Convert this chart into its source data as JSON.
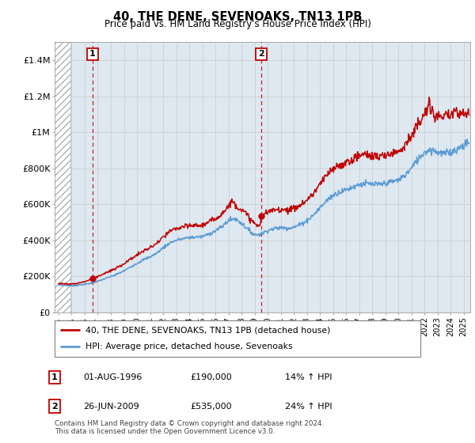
{
  "title": "40, THE DENE, SEVENOAKS, TN13 1PB",
  "subtitle": "Price paid vs. HM Land Registry's House Price Index (HPI)",
  "xlim_start": 1993.7,
  "xlim_end": 2025.5,
  "ylim": [
    0,
    1500000
  ],
  "yticks": [
    0,
    200000,
    400000,
    600000,
    800000,
    1000000,
    1200000,
    1400000
  ],
  "ytick_labels": [
    "£0",
    "£200K",
    "£400K",
    "£600K",
    "£800K",
    "£1M",
    "£1.2M",
    "£1.4M"
  ],
  "sale1_x": 1996.6,
  "sale1_y": 190000,
  "sale1_label": "1",
  "sale2_x": 2009.5,
  "sale2_y": 535000,
  "sale2_label": "2",
  "hpi_color": "#5b9bd5",
  "price_color": "#c00000",
  "grid_color": "#d0d0d0",
  "bg_color": "#dde8f0",
  "hatch_end": 1994.92,
  "legend_line1": "40, THE DENE, SEVENOAKS, TN13 1PB (detached house)",
  "legend_line2": "HPI: Average price, detached house, Sevenoaks",
  "annotation1_date": "01-AUG-1996",
  "annotation1_price": "£190,000",
  "annotation1_hpi": "14% ↑ HPI",
  "annotation2_date": "26-JUN-2009",
  "annotation2_price": "£535,000",
  "annotation2_hpi": "24% ↑ HPI",
  "footer": "Contains HM Land Registry data © Crown copyright and database right 2024.\nThis data is licensed under the Open Government Licence v3.0.",
  "xtick_years": [
    1994,
    1995,
    1996,
    1997,
    1998,
    1999,
    2000,
    2001,
    2002,
    2003,
    2004,
    2005,
    2006,
    2007,
    2008,
    2009,
    2010,
    2011,
    2012,
    2013,
    2014,
    2015,
    2016,
    2017,
    2018,
    2019,
    2020,
    2021,
    2022,
    2023,
    2024,
    2025
  ]
}
